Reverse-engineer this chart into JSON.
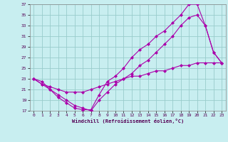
{
  "xlabel": "Windchill (Refroidissement éolien,°C)",
  "bg_color": "#c8eef0",
  "line_color": "#aa00aa",
  "grid_color": "#99cccc",
  "xlim": [
    -0.5,
    23.5
  ],
  "ylim": [
    17,
    37
  ],
  "yticks": [
    17,
    19,
    21,
    23,
    25,
    27,
    29,
    31,
    33,
    35,
    37
  ],
  "xticks": [
    0,
    1,
    2,
    3,
    4,
    5,
    6,
    7,
    8,
    9,
    10,
    11,
    12,
    13,
    14,
    15,
    16,
    17,
    18,
    19,
    20,
    21,
    22,
    23
  ],
  "line1_x": [
    0,
    1,
    2,
    3,
    4,
    5,
    6,
    7,
    8,
    9,
    10,
    11,
    12,
    13,
    14,
    15,
    16,
    17,
    18,
    19,
    20,
    21,
    22,
    23
  ],
  "line1_y": [
    23,
    22.5,
    21,
    19.5,
    18.5,
    17.5,
    17.2,
    17.2,
    20,
    22.5,
    23.5,
    25,
    27,
    28.5,
    29.5,
    31,
    32,
    33.5,
    35,
    37,
    37,
    33,
    28,
    26
  ],
  "line2_x": [
    0,
    1,
    2,
    3,
    4,
    5,
    6,
    7,
    8,
    9,
    10,
    11,
    12,
    13,
    14,
    15,
    16,
    17,
    18,
    19,
    20,
    21,
    22,
    23
  ],
  "line2_y": [
    23,
    22,
    21,
    20,
    19,
    18,
    17.5,
    17,
    19,
    20.5,
    22,
    23,
    24,
    25.5,
    26.5,
    28,
    29.5,
    31,
    33,
    34.5,
    35,
    33,
    28,
    26
  ],
  "line3_x": [
    0,
    1,
    2,
    3,
    4,
    5,
    6,
    7,
    8,
    9,
    10,
    11,
    12,
    13,
    14,
    15,
    16,
    17,
    18,
    19,
    20,
    21,
    22,
    23
  ],
  "line3_y": [
    23,
    22,
    21.5,
    21,
    20.5,
    20.5,
    20.5,
    21,
    21.5,
    22,
    22.5,
    23,
    23.5,
    23.5,
    24,
    24.5,
    24.5,
    25,
    25.5,
    25.5,
    26,
    26,
    26,
    26
  ]
}
